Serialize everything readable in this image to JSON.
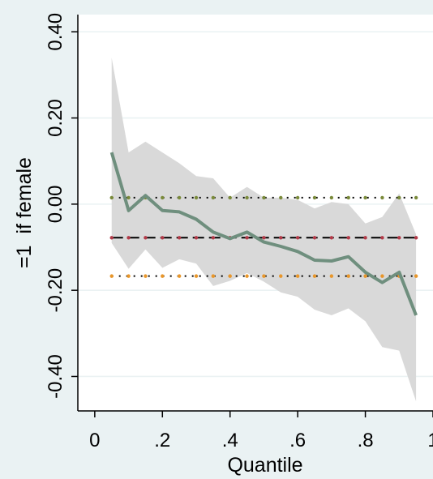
{
  "chart_data": {
    "type": "line",
    "title": "",
    "xlabel": "Quantile",
    "ylabel": "=1  if female",
    "xlim": [
      -0.05,
      1.0
    ],
    "ylim": [
      -0.48,
      0.44
    ],
    "xticks": [
      0,
      0.2,
      0.4,
      0.6,
      0.8,
      1
    ],
    "xtick_labels": [
      "0",
      ".2",
      ".4",
      ".6",
      ".8",
      "1"
    ],
    "yticks": [
      0.4,
      0.2,
      0.0,
      -0.2,
      -0.4
    ],
    "ytick_labels": [
      "0.40",
      "0.20",
      "0.00",
      "-0.20",
      "-0.40"
    ],
    "grid": true,
    "legend": "none",
    "x": [
      0.05,
      0.1,
      0.15,
      0.2,
      0.25,
      0.3,
      0.35,
      0.4,
      0.45,
      0.5,
      0.55,
      0.6,
      0.65,
      0.7,
      0.75,
      0.8,
      0.85,
      0.9,
      0.95
    ],
    "series": [
      {
        "role": "quantile-estimate",
        "color": "#6f8f7e",
        "values": [
          0.12,
          -0.015,
          0.02,
          -0.015,
          -0.018,
          -0.035,
          -0.065,
          -0.08,
          -0.065,
          -0.088,
          -0.098,
          -0.11,
          -0.13,
          -0.132,
          -0.122,
          -0.158,
          -0.182,
          -0.158,
          -0.258
        ]
      },
      {
        "role": "confidence-band",
        "color": "#d9d9d9",
        "upper": [
          0.34,
          0.12,
          0.145,
          0.12,
          0.095,
          0.065,
          0.06,
          0.015,
          0.04,
          0.015,
          0.015,
          0.01,
          -0.01,
          0.005,
          0.0,
          -0.045,
          -0.03,
          0.025,
          -0.07
        ],
        "lower": [
          -0.09,
          -0.15,
          -0.105,
          -0.148,
          -0.128,
          -0.138,
          -0.19,
          -0.178,
          -0.16,
          -0.18,
          -0.205,
          -0.215,
          -0.245,
          -0.258,
          -0.242,
          -0.272,
          -0.332,
          -0.34,
          -0.458
        ]
      },
      {
        "role": "ols-estimate",
        "style": "dashed",
        "color": "#000000",
        "marker_color": "#b23a48",
        "values": [
          -0.078,
          -0.078,
          -0.078,
          -0.078,
          -0.078,
          -0.078,
          -0.078,
          -0.078,
          -0.078,
          -0.078,
          -0.078,
          -0.078,
          -0.078,
          -0.078,
          -0.078,
          -0.078,
          -0.078,
          -0.078,
          -0.078
        ]
      },
      {
        "role": "ols-upper",
        "style": "dotted",
        "color": "#000000",
        "marker_color": "#7a8a3a",
        "values": [
          0.015,
          0.015,
          0.015,
          0.015,
          0.015,
          0.015,
          0.015,
          0.015,
          0.015,
          0.015,
          0.015,
          0.015,
          0.015,
          0.015,
          0.015,
          0.015,
          0.015,
          0.015,
          0.015
        ]
      },
      {
        "role": "ols-lower",
        "style": "dotted",
        "color": "#000000",
        "marker_color": "#e8962a",
        "values": [
          -0.167,
          -0.167,
          -0.167,
          -0.167,
          -0.167,
          -0.167,
          -0.167,
          -0.167,
          -0.167,
          -0.167,
          -0.167,
          -0.167,
          -0.167,
          -0.167,
          -0.167,
          -0.167,
          -0.167,
          -0.167,
          -0.167
        ]
      }
    ],
    "colors": {
      "page_background": "#eaf2f3",
      "plot_background": "#ffffff",
      "gridline": "#eaf2f3",
      "axis": "#000000"
    }
  }
}
